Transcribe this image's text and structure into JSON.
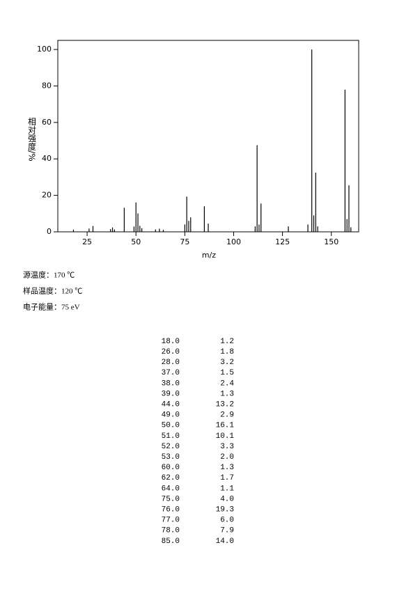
{
  "chart_data": {
    "type": "bar",
    "xlabel": "m/z",
    "ylabel": "相对强度/%",
    "x": [
      18,
      26,
      28,
      37,
      38,
      39,
      44,
      49,
      50,
      51,
      52,
      53,
      60,
      62,
      64,
      75,
      76,
      77,
      78,
      85,
      87,
      111,
      112,
      113,
      114,
      128,
      138,
      140,
      141,
      142,
      143,
      157,
      158,
      159,
      160
    ],
    "values": [
      1.2,
      1.8,
      3.2,
      1.5,
      2.4,
      1.3,
      13.2,
      2.9,
      16.1,
      10.1,
      3.3,
      2.0,
      1.3,
      1.7,
      1.1,
      4.0,
      19.3,
      6.0,
      7.9,
      14.0,
      4.5,
      3.0,
      47.5,
      4.0,
      15.5,
      3.0,
      4.0,
      100,
      9.0,
      32.5,
      3.0,
      78,
      7.0,
      25.5,
      2.5
    ],
    "color": "#000000",
    "xlim": [
      10,
      164
    ],
    "ylim": [
      0,
      105
    ],
    "xticks": [
      25,
      50,
      75,
      100,
      125,
      150
    ],
    "yticks": [
      0,
      20,
      40,
      60,
      80,
      100
    ]
  },
  "info": [
    "源温度：170 ℃",
    "样品温度：120 ℃",
    "电子能量：75 eV"
  ],
  "table": {
    "rows": [
      [
        "18.0",
        "1.2"
      ],
      [
        "26.0",
        "1.8"
      ],
      [
        "28.0",
        "3.2"
      ],
      [
        "37.0",
        "1.5"
      ],
      [
        "38.0",
        "2.4"
      ],
      [
        "39.0",
        "1.3"
      ],
      [
        "44.0",
        "13.2"
      ],
      [
        "49.0",
        "2.9"
      ],
      [
        "50.0",
        "16.1"
      ],
      [
        "51.0",
        "10.1"
      ],
      [
        "52.0",
        "3.3"
      ],
      [
        "53.0",
        "2.0"
      ],
      [
        "60.0",
        "1.3"
      ],
      [
        "62.0",
        "1.7"
      ],
      [
        "64.0",
        "1.1"
      ],
      [
        "75.0",
        "4.0"
      ],
      [
        "76.0",
        "19.3"
      ],
      [
        "77.0",
        "6.0"
      ],
      [
        "78.0",
        "7.9"
      ],
      [
        "85.0",
        "14.0"
      ]
    ]
  }
}
